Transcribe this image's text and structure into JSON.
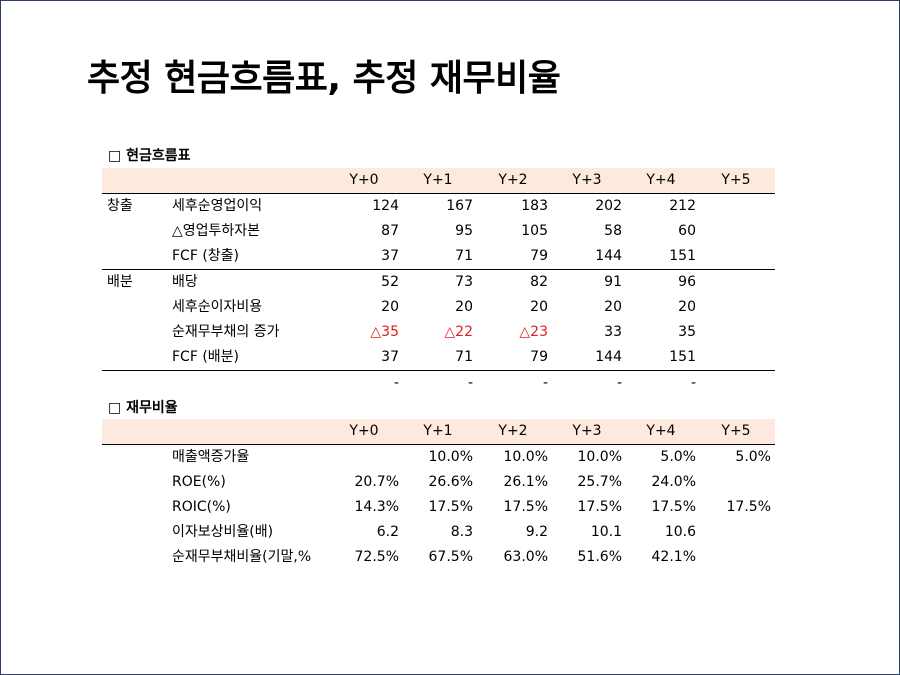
{
  "title": "추정 현금흐름표, 추정 재무비율",
  "cashflow": {
    "section_title": "□ 현금흐름표",
    "headers": [
      "Y+0",
      "Y+1",
      "Y+2",
      "Y+3",
      "Y+4",
      "Y+5"
    ],
    "rows": [
      {
        "group": "창출",
        "label": "세후순영업이익",
        "values": [
          "124",
          "167",
          "183",
          "202",
          "212",
          ""
        ]
      },
      {
        "group": "",
        "label": "△영업투하자본",
        "values": [
          "87",
          "95",
          "105",
          "58",
          "60",
          ""
        ]
      },
      {
        "group": "",
        "label": "FCF (창출)",
        "values": [
          "37",
          "71",
          "79",
          "144",
          "151",
          ""
        ]
      },
      {
        "group": "배분",
        "label": "배당",
        "values": [
          "52",
          "73",
          "82",
          "91",
          "96",
          ""
        ]
      },
      {
        "group": "",
        "label": "세후순이자비용",
        "values": [
          "20",
          "20",
          "20",
          "20",
          "20",
          ""
        ]
      },
      {
        "group": "",
        "label": "순재무부채의 증가",
        "values": [
          "△35",
          "△22",
          "△23",
          "33",
          "35",
          ""
        ]
      },
      {
        "group": "",
        "label": "FCF (배분)",
        "values": [
          "37",
          "71",
          "79",
          "144",
          "151",
          ""
        ]
      },
      {
        "group": "",
        "label": "",
        "values": [
          "-",
          "-",
          "-",
          "-",
          "-",
          ""
        ]
      }
    ],
    "negative_color": "#e02020"
  },
  "ratios": {
    "section_title": "□ 재무비율",
    "headers": [
      "Y+0",
      "Y+1",
      "Y+2",
      "Y+3",
      "Y+4",
      "Y+5"
    ],
    "rows": [
      {
        "label": "매출액증가율",
        "values": [
          "",
          "10.0%",
          "10.0%",
          "10.0%",
          "5.0%",
          "5.0%"
        ]
      },
      {
        "label": "ROE(%)",
        "values": [
          "20.7%",
          "26.6%",
          "26.1%",
          "25.7%",
          "24.0%",
          ""
        ]
      },
      {
        "label": "ROIC(%)",
        "values": [
          "14.3%",
          "17.5%",
          "17.5%",
          "17.5%",
          "17.5%",
          "17.5%"
        ]
      },
      {
        "label": "이자보상비율(배)",
        "values": [
          "6.2",
          "8.3",
          "9.2",
          "10.1",
          "10.6",
          ""
        ]
      },
      {
        "label": "순재무부채비율(기말,%",
        "values": [
          "72.5%",
          "67.5%",
          "63.0%",
          "51.6%",
          "42.1%",
          ""
        ]
      }
    ]
  },
  "colors": {
    "header_fill": "#fde9dd",
    "border": "#2f3f63"
  }
}
